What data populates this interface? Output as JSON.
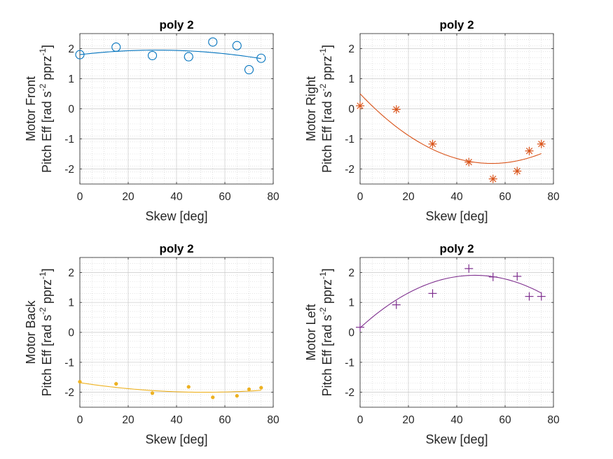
{
  "figure": {
    "background": "#ffffff",
    "axis_color": "#262626",
    "grid_color": "#d0d0d0"
  },
  "chart_data": [
    {
      "type": "scatter",
      "title": "poly 2",
      "xlabel": "Skew [deg]",
      "ylabel_line1": "Motor Front",
      "ylabel_line2": {
        "main": "Pitch Eff [rad s",
        "exp1": "-2",
        "mid": " pprz",
        "exp2": "-1",
        "end": "]"
      },
      "xlim": [
        0,
        80
      ],
      "ylim": [
        -2.5,
        2.5
      ],
      "xticks": [
        0,
        20,
        40,
        60,
        80
      ],
      "yticks": [
        -2,
        -1,
        0,
        1,
        2
      ],
      "grid": true,
      "minor_grid": true,
      "color": "#0072BD",
      "marker": "circle",
      "series": [
        {
          "x": [
            0,
            15,
            30,
            45,
            55,
            65,
            70,
            75
          ],
          "y": [
            1.8,
            2.05,
            1.77,
            1.73,
            2.22,
            2.1,
            1.3,
            1.68
          ]
        }
      ],
      "fit": {
        "order": 2,
        "coeffs": [
          1.8,
          0.0095,
          -0.00015
        ]
      }
    },
    {
      "type": "scatter",
      "title": "poly 2",
      "xlabel": "Skew [deg]",
      "ylabel_line1": "Motor Right",
      "ylabel_line2": {
        "main": "Pitch Eff [rad s",
        "exp1": "-2",
        "mid": " pprz",
        "exp2": "-1",
        "end": "]"
      },
      "xlim": [
        0,
        80
      ],
      "ylim": [
        -2.5,
        2.5
      ],
      "xticks": [
        0,
        20,
        40,
        60,
        80
      ],
      "yticks": [
        -2,
        -1,
        0,
        1,
        2
      ],
      "grid": true,
      "minor_grid": true,
      "color": "#D95319",
      "marker": "asterisk",
      "series": [
        {
          "x": [
            0,
            15,
            30,
            45,
            55,
            65,
            70,
            75
          ],
          "y": [
            0.1,
            -0.02,
            -1.17,
            -1.77,
            -2.33,
            -2.07,
            -1.4,
            -1.17
          ]
        }
      ],
      "fit": {
        "order": 2,
        "coeffs": [
          0.5,
          -0.085,
          0.00078
        ]
      }
    },
    {
      "type": "scatter",
      "title": "poly 2",
      "xlabel": "Skew [deg]",
      "ylabel_line1": "Motor Back",
      "ylabel_line2": {
        "main": "Pitch Eff [rad s",
        "exp1": "-2",
        "mid": " pprz",
        "exp2": "-1",
        "end": "]"
      },
      "xlim": [
        0,
        80
      ],
      "ylim": [
        -2.5,
        2.5
      ],
      "xticks": [
        0,
        20,
        40,
        60,
        80
      ],
      "yticks": [
        -2,
        -1,
        0,
        1,
        2
      ],
      "grid": true,
      "minor_grid": true,
      "color": "#EDB120",
      "marker": "dot",
      "series": [
        {
          "x": [
            0,
            15,
            30,
            45,
            55,
            65,
            70,
            75
          ],
          "y": [
            -1.65,
            -1.72,
            -2.03,
            -1.82,
            -2.17,
            -2.12,
            -1.9,
            -1.85
          ]
        }
      ],
      "fit": {
        "order": 2,
        "coeffs": [
          -1.68,
          -0.0124,
          0.00012
        ]
      }
    },
    {
      "type": "scatter",
      "title": "poly 2",
      "xlabel": "Skew [deg]",
      "ylabel_line1": "Motor Left",
      "ylabel_line2": {
        "main": "Pitch Eff [rad s",
        "exp1": "-2",
        "mid": " pprz",
        "exp2": "-1",
        "end": "]"
      },
      "xlim": [
        0,
        80
      ],
      "ylim": [
        -2.5,
        2.5
      ],
      "xticks": [
        0,
        20,
        40,
        60,
        80
      ],
      "yticks": [
        -2,
        -1,
        0,
        1,
        2
      ],
      "grid": true,
      "minor_grid": true,
      "color": "#7E2F8E",
      "marker": "plus",
      "series": [
        {
          "x": [
            0,
            15,
            30,
            45,
            55,
            65,
            70,
            75
          ],
          "y": [
            0.17,
            0.92,
            1.3,
            2.13,
            1.85,
            1.87,
            1.2,
            1.2
          ]
        }
      ],
      "fit": {
        "order": 2,
        "coeffs": [
          0.15,
          0.074,
          -0.00078
        ]
      }
    }
  ]
}
